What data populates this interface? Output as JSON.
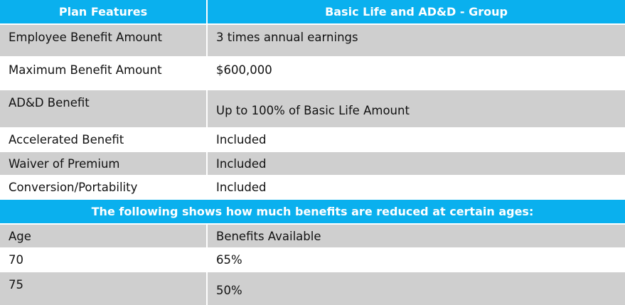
{
  "header": {
    "col1": "Plan Features",
    "col2": "Basic Life and AD&D - Group"
  },
  "rows": [
    {
      "feature": "Employee Benefit Amount",
      "value": "3 times annual earnings"
    },
    {
      "feature": "Maximum Benefit Amount",
      "value": "$600,000"
    },
    {
      "feature": "AD&D Benefit",
      "value": "Up to 100% of Basic Life Amount"
    },
    {
      "feature": "Accelerated Benefit",
      "value": "Included"
    },
    {
      "feature": "Waiver of Premium",
      "value": "Included"
    },
    {
      "feature": "Conversion/Portability",
      "value": "Included"
    }
  ],
  "reduction": {
    "banner": "The following shows how much benefits are reduced at certain ages:",
    "col1": "Age",
    "col2": "Benefits Available",
    "rows": [
      {
        "age": "70",
        "value": "65%"
      },
      {
        "age": "75",
        "value": "50%"
      }
    ]
  }
}
